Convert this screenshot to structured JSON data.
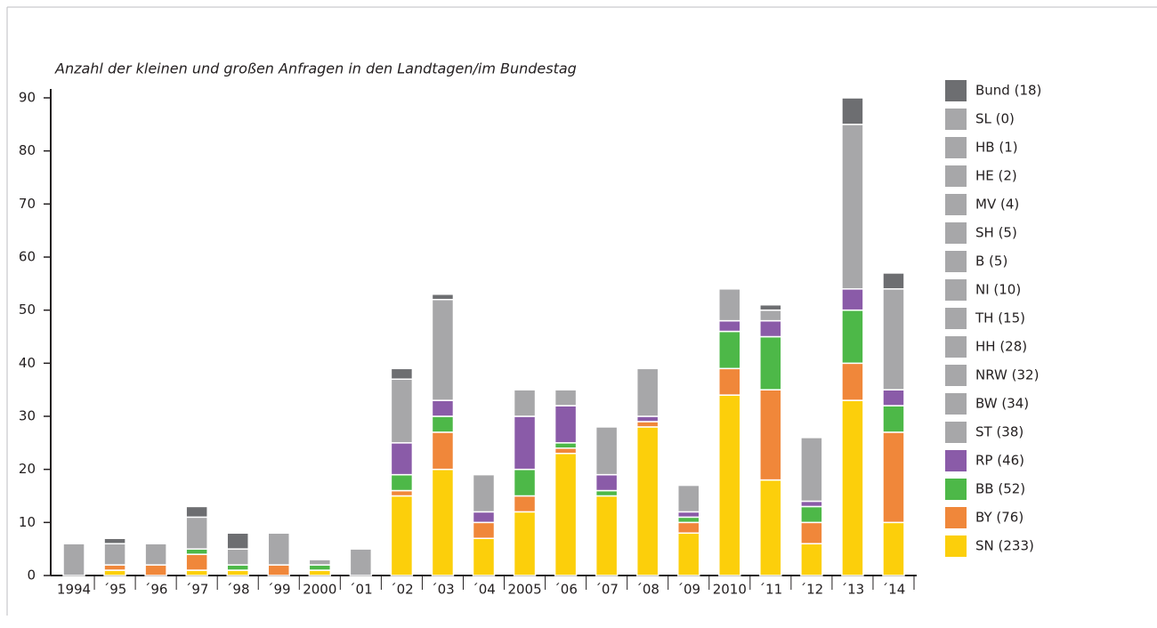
{
  "chart_data": {
    "type": "bar",
    "stacked": true,
    "title": "Anzahl der kleinen und großen Anfragen in den Landtagen/im Bundestag",
    "categories": [
      "1994",
      "´95",
      "´96",
      "´97",
      "´98",
      "´99",
      "2000",
      "´01",
      "´02",
      "´03",
      "´04",
      "2005",
      "´06",
      "´07",
      "´08",
      "´09",
      "2010",
      "´11",
      "´12",
      "´13",
      "´14"
    ],
    "series": [
      {
        "color": "#fccf0b",
        "values": [
          0,
          1,
          0,
          1,
          1,
          0,
          1,
          0,
          15,
          20,
          7,
          12,
          23,
          15,
          28,
          8,
          34,
          18,
          6,
          33,
          10
        ]
      },
      {
        "color": "#f0873a",
        "values": [
          0,
          1,
          2,
          3,
          0,
          2,
          0,
          0,
          1,
          7,
          3,
          3,
          1,
          0,
          1,
          2,
          5,
          17,
          4,
          7,
          17
        ]
      },
      {
        "color": "#4db848",
        "values": [
          0,
          0,
          0,
          1,
          1,
          0,
          1,
          0,
          3,
          3,
          0,
          5,
          1,
          1,
          0,
          1,
          7,
          10,
          3,
          10,
          5
        ]
      },
      {
        "color": "#8a5ba8",
        "values": [
          0,
          0,
          0,
          0,
          0,
          0,
          0,
          0,
          6,
          3,
          2,
          10,
          7,
          3,
          1,
          1,
          2,
          3,
          1,
          4,
          3
        ]
      },
      {
        "color": "#a7a7a9",
        "values": [
          6,
          4,
          4,
          6,
          3,
          6,
          1,
          5,
          12,
          19,
          7,
          5,
          3,
          9,
          9,
          5,
          6,
          2,
          12,
          31,
          19
        ]
      },
      {
        "color": "#6d6e71",
        "values": [
          0,
          1,
          0,
          2,
          3,
          0,
          0,
          0,
          2,
          1,
          0,
          0,
          0,
          0,
          0,
          0,
          0,
          1,
          0,
          5,
          3
        ]
      }
    ],
    "legend": [
      {
        "label": "Bund (18)",
        "color": "#6d6e71"
      },
      {
        "label": "SL (0)",
        "color": "#a7a7a9"
      },
      {
        "label": "HB (1)",
        "color": "#a7a7a9"
      },
      {
        "label": "HE (2)",
        "color": "#a7a7a9"
      },
      {
        "label": "MV (4)",
        "color": "#a7a7a9"
      },
      {
        "label": "SH (5)",
        "color": "#a7a7a9"
      },
      {
        "label": "B (5)",
        "color": "#a7a7a9"
      },
      {
        "label": "NI (10)",
        "color": "#a7a7a9"
      },
      {
        "label": "TH (15)",
        "color": "#a7a7a9"
      },
      {
        "label": "HH (28)",
        "color": "#a7a7a9"
      },
      {
        "label": "NRW (32)",
        "color": "#a7a7a9"
      },
      {
        "label": "BW (34)",
        "color": "#a7a7a9"
      },
      {
        "label": "ST (38)",
        "color": "#a7a7a9"
      },
      {
        "label": "RP (46)",
        "color": "#8a5ba8"
      },
      {
        "label": "BB (52)",
        "color": "#4db848"
      },
      {
        "label": "BY (76)",
        "color": "#f0873a"
      },
      {
        "label": "SN (233)",
        "color": "#fccf0b"
      }
    ],
    "ylim": [
      0,
      90
    ],
    "yticks": [
      0,
      10,
      20,
      30,
      40,
      50,
      60,
      70,
      80,
      90
    ]
  }
}
